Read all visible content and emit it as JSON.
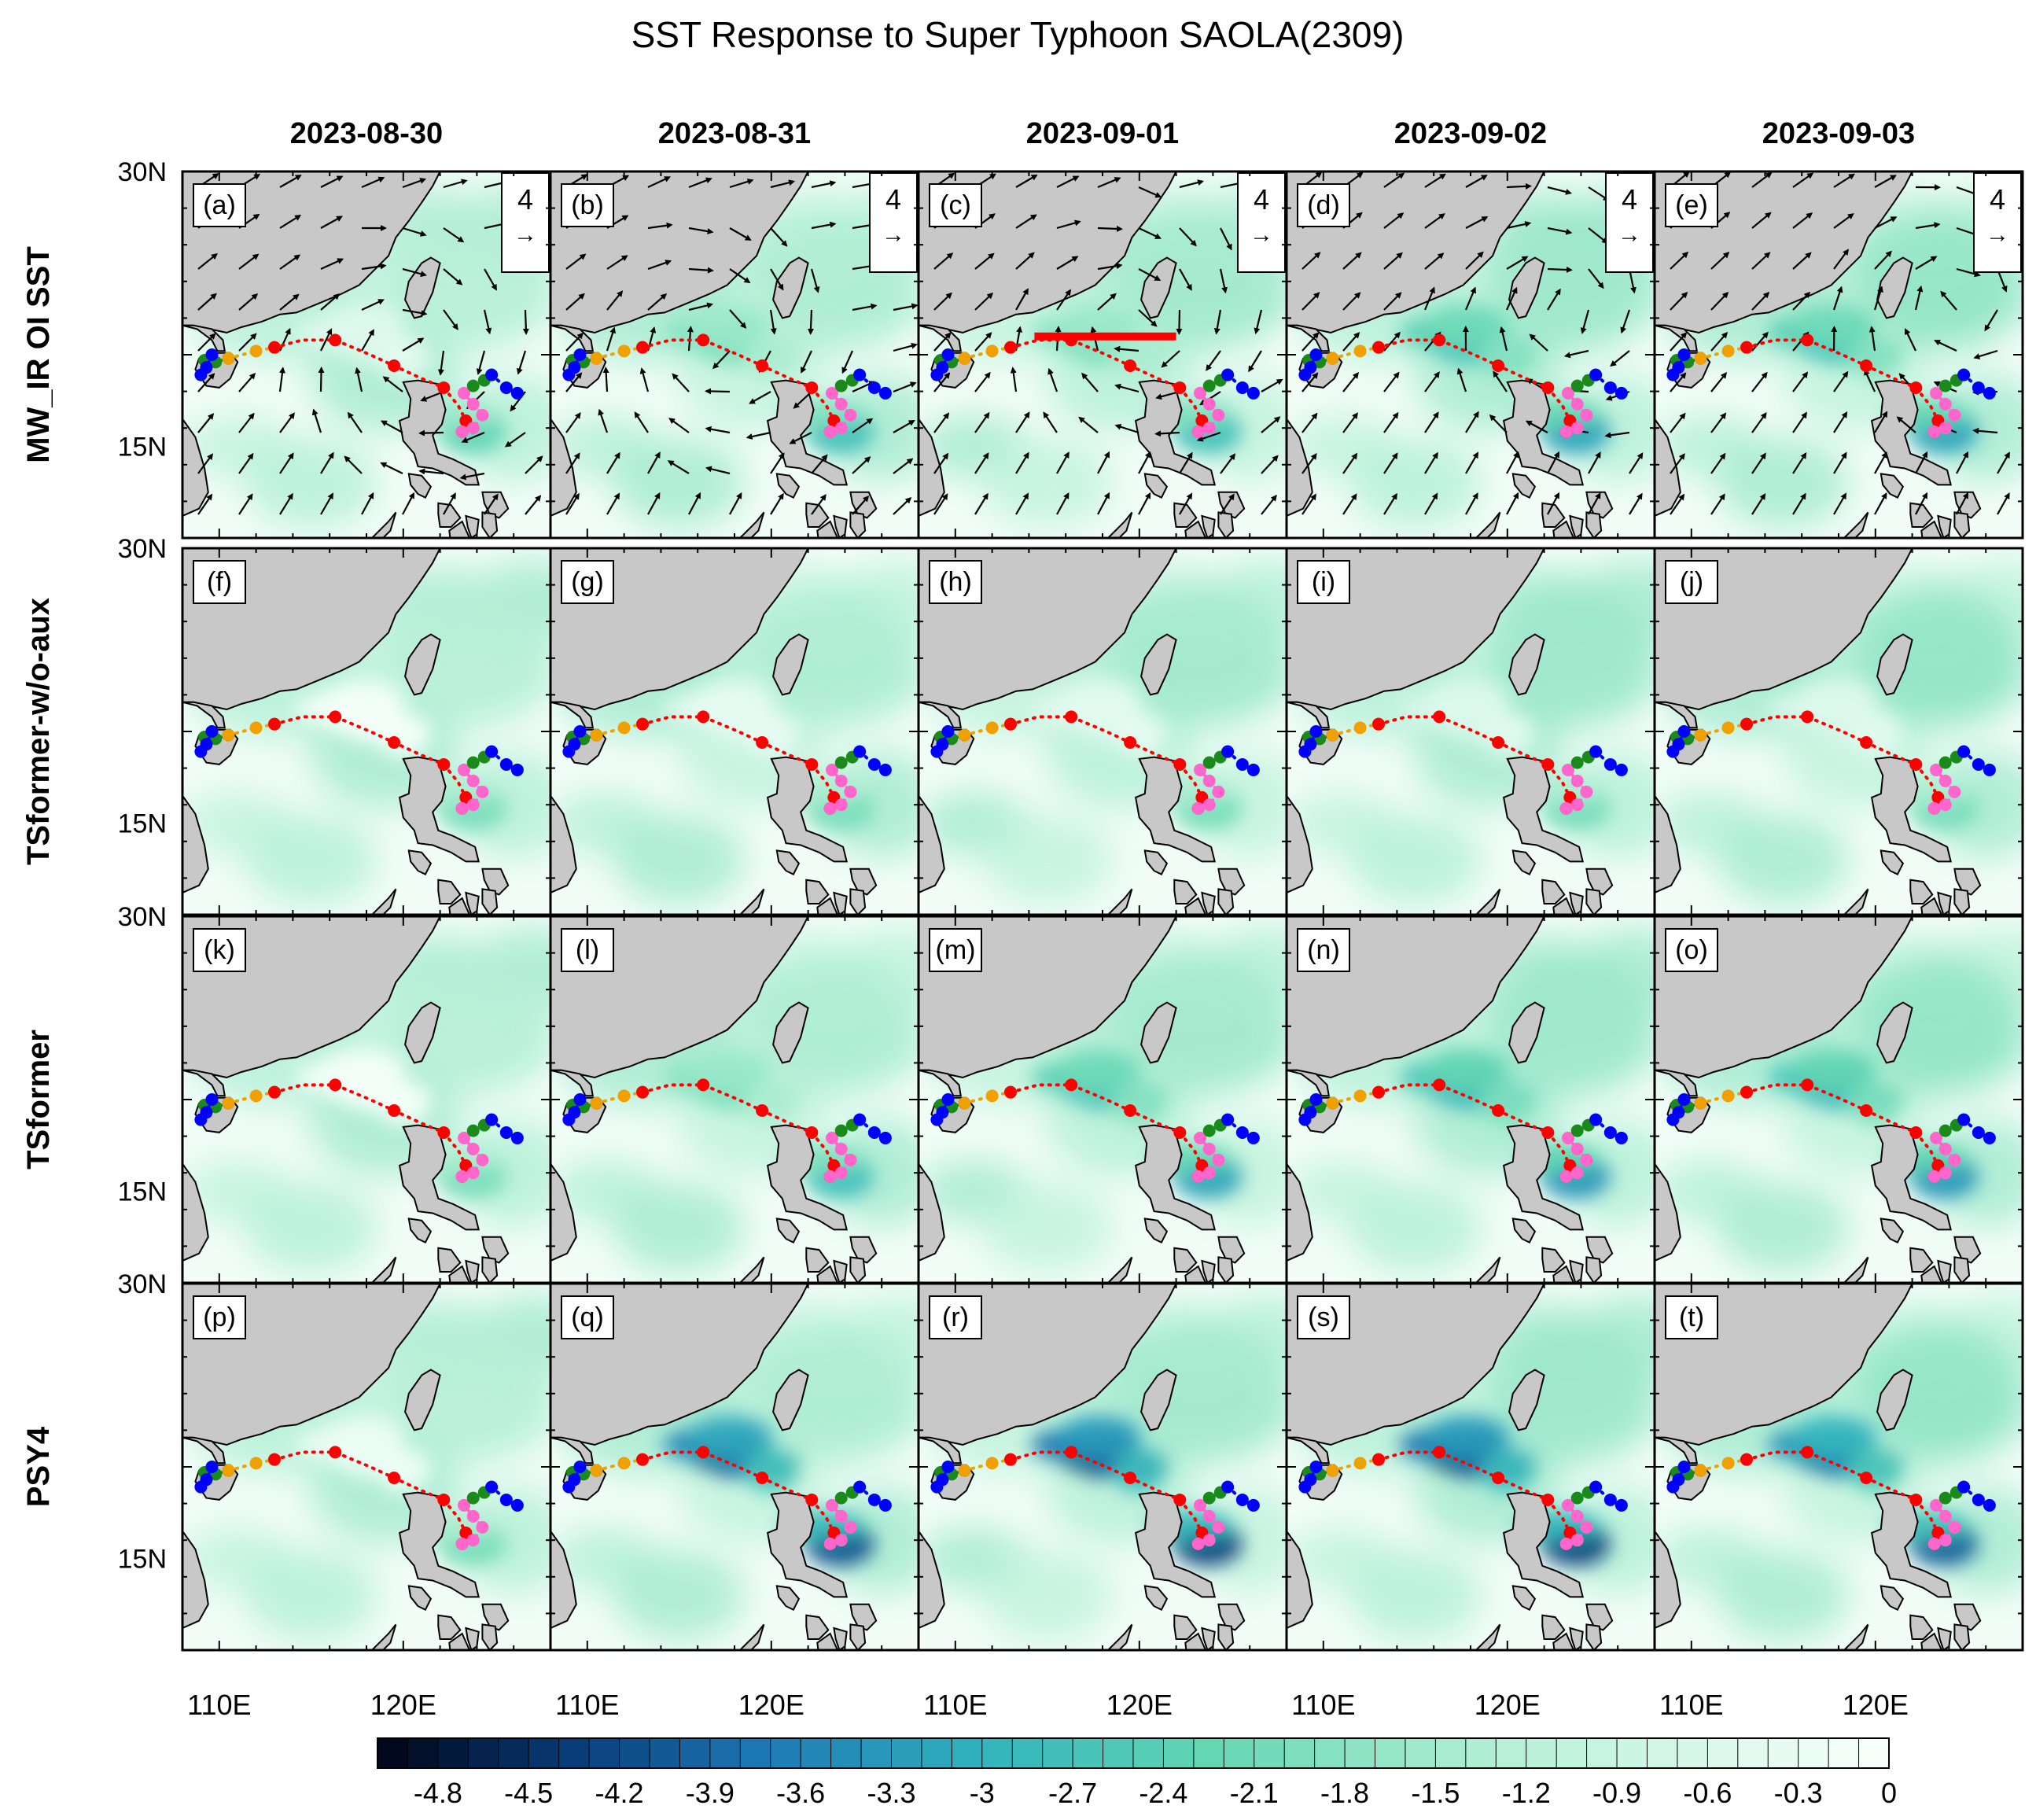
{
  "chart_data": {
    "type": "heatmap",
    "title": "SST Response to Super Typhoon SAOLA(2309)",
    "columns": [
      "2023-08-30",
      "2023-08-31",
      "2023-09-01",
      "2023-09-02",
      "2023-09-03"
    ],
    "rows": [
      "MW_IR OI SST",
      "TSformer-w/o-aux",
      "TSformer",
      "PSY4"
    ],
    "panel_labels": [
      "(a)",
      "(b)",
      "(c)",
      "(d)",
      "(e)",
      "(f)",
      "(g)",
      "(h)",
      "(i)",
      "(j)",
      "(k)",
      "(l)",
      "(m)",
      "(n)",
      "(o)",
      "(p)",
      "(q)",
      "(r)",
      "(s)",
      "(t)"
    ],
    "x_ticks": [
      "110E",
      "120E"
    ],
    "x_tick_values": [
      110,
      120
    ],
    "y_ticks_top": [
      "30N",
      "15N"
    ],
    "y_tick_values": [
      30,
      15
    ],
    "lon_range": [
      108,
      128
    ],
    "lat_range": [
      10,
      30
    ],
    "wind_reference_label": "4",
    "wind_reference_arrow": "→",
    "colorbar": {
      "min": -5.0,
      "max": 0,
      "step": 0.1,
      "tick_labels": [
        "-4.8",
        "-4.5",
        "-4.2",
        "-3.9",
        "-3.6",
        "-3.3",
        "-3",
        "-2.7",
        "-2.4",
        "-2.1",
        "-1.8",
        "-1.5",
        "-1.2",
        "-0.9",
        "-0.6",
        "-0.3",
        "0"
      ],
      "tick_values": [
        -4.8,
        -4.5,
        -4.2,
        -3.9,
        -3.6,
        -3.3,
        -3.0,
        -2.7,
        -2.4,
        -2.1,
        -1.8,
        -1.5,
        -1.2,
        -0.9,
        -0.6,
        -0.3,
        0
      ],
      "colors": [
        "#000000",
        "#08306b",
        "#08519c",
        "#2171b5",
        "#1d91c0",
        "#41b6c4",
        "#3fd0b0",
        "#7fe0c0",
        "#b6f0d6",
        "#f7fffb"
      ]
    },
    "typhoon_tracks": [
      {
        "name": "track-green",
        "color": "#1a8a1a",
        "points": [
          [
            109.2,
            19.7
          ],
          [
            109.8,
            19.6
          ],
          [
            110.5,
            19.8
          ]
        ]
      },
      {
        "name": "track-orange",
        "color": "#f0a000",
        "points": [
          [
            110.5,
            19.8
          ],
          [
            112.0,
            20.2
          ],
          [
            113.0,
            20.4
          ]
        ]
      },
      {
        "name": "track-saola",
        "color": "#ff0000",
        "points": [
          [
            113.0,
            20.4
          ],
          [
            114.5,
            20.8
          ],
          [
            116.3,
            20.8
          ],
          [
            118.2,
            20.0
          ],
          [
            119.5,
            19.4
          ],
          [
            121.0,
            18.7
          ],
          [
            122.2,
            18.2
          ],
          [
            123.0,
            17.2
          ],
          [
            123.4,
            16.4
          ],
          [
            123.2,
            15.8
          ]
        ]
      },
      {
        "name": "track-pink",
        "color": "#ff66cc",
        "points": [
          [
            123.2,
            15.8
          ],
          [
            123.8,
            16.0
          ],
          [
            124.3,
            16.7
          ],
          [
            123.8,
            17.3
          ],
          [
            123.3,
            17.9
          ]
        ]
      },
      {
        "name": "track-green-2",
        "color": "#1a8a1a",
        "points": [
          [
            123.8,
            18.3
          ],
          [
            124.4,
            18.6
          ],
          [
            124.8,
            18.9
          ]
        ]
      },
      {
        "name": "track-blue-east",
        "color": "#0000ff",
        "points": [
          [
            124.8,
            18.9
          ],
          [
            125.6,
            18.2
          ],
          [
            126.2,
            17.9
          ]
        ]
      },
      {
        "name": "track-blue-west",
        "color": "#0000ff",
        "points": [
          [
            109.6,
            20.0
          ],
          [
            109.3,
            19.3
          ],
          [
            109.0,
            18.9
          ]
        ]
      }
    ],
    "cooling_intensity": [
      [
        0.3,
        0.45,
        0.45,
        0.6,
        0.6
      ],
      [
        0.05,
        0.1,
        0.12,
        0.15,
        0.15
      ],
      [
        0.05,
        0.45,
        0.6,
        0.65,
        0.65
      ],
      [
        0.15,
        0.9,
        0.95,
        0.95,
        0.85
      ]
    ]
  }
}
